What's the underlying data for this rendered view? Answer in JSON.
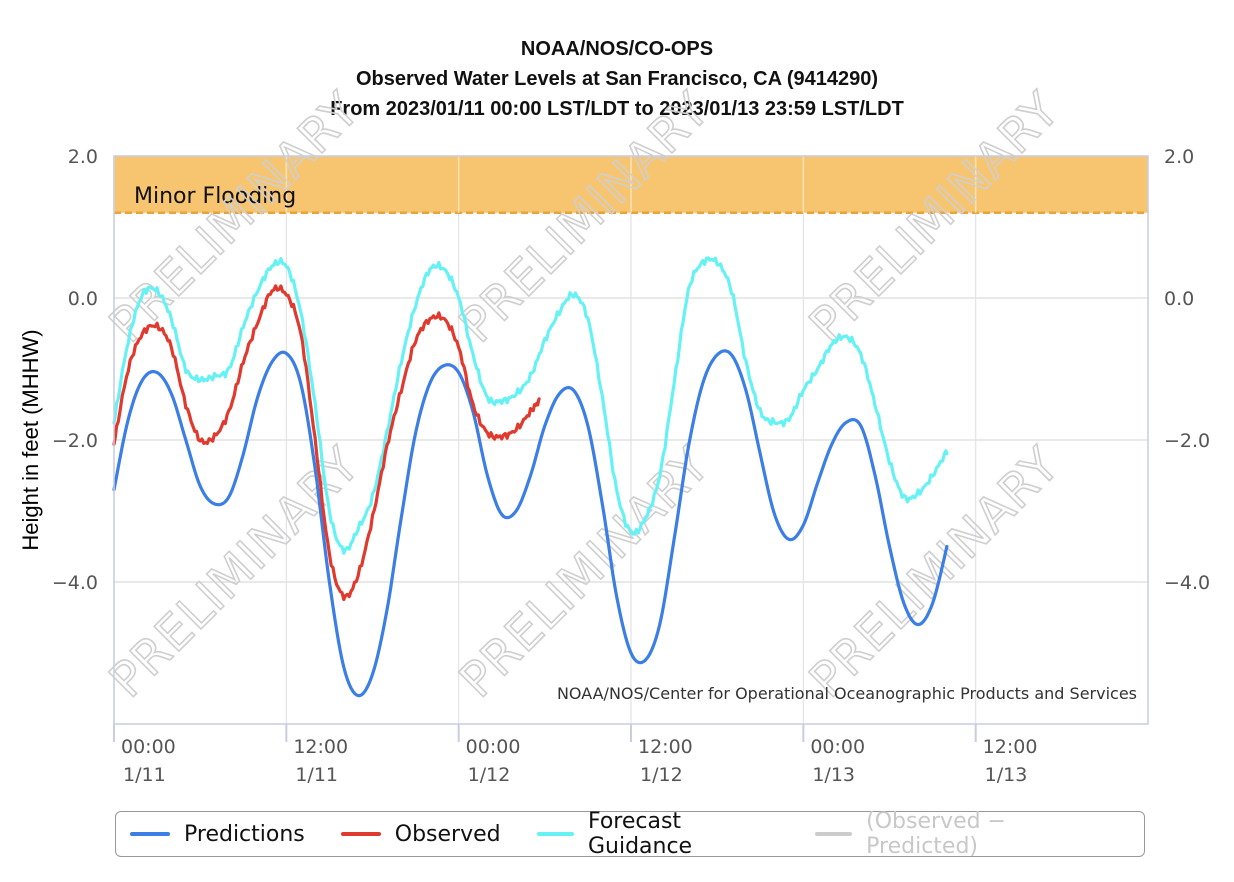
{
  "titles": {
    "line1": "NOAA/NOS/CO-OPS",
    "line2": "Observed Water Levels at San Francisco, CA (9414290)",
    "line3": "From 2023/01/11 00:00 LST/LDT to 2023/01/13 23:59 LST/LDT"
  },
  "credit": "NOAA/NOS/Center for Operational Oceanographic Products and Services",
  "watermark_text": "PRELIMINARY",
  "chart_data": {
    "type": "line",
    "ylabel": "Height in feet (MHHW)",
    "ylim": [
      -6.0,
      2.0
    ],
    "xlim": [
      0,
      72
    ],
    "x_units": "hours from 2023/01/11 00:00",
    "y_ticks": [
      {
        "value": 2.0,
        "label": "2.0"
      },
      {
        "value": 0.0,
        "label": "0.0"
      },
      {
        "value": -2.0,
        "label": "−2.0"
      },
      {
        "value": -4.0,
        "label": "−4.0"
      }
    ],
    "x_ticks": [
      {
        "x": 0,
        "time": "00:00",
        "date": "1/11"
      },
      {
        "x": 12,
        "time": "12:00",
        "date": "1/11"
      },
      {
        "x": 24,
        "time": "00:00",
        "date": "1/12"
      },
      {
        "x": 36,
        "time": "12:00",
        "date": "1/12"
      },
      {
        "x": 48,
        "time": "00:00",
        "date": "1/13"
      },
      {
        "x": 60,
        "time": "12:00",
        "date": "1/13"
      }
    ],
    "grid": true,
    "band": {
      "label": "Minor Flooding",
      "from": 1.2,
      "to": 2.0,
      "color": "#f7c570",
      "line_color": "#e8a33a"
    },
    "series": [
      {
        "name": "Predictions",
        "color": "#3a7ee6",
        "points": [
          [
            0,
            -2.7
          ],
          [
            1,
            -1.7
          ],
          [
            2,
            -1.15
          ],
          [
            3,
            -1.05
          ],
          [
            4,
            -1.35
          ],
          [
            5,
            -2.0
          ],
          [
            6,
            -2.65
          ],
          [
            7,
            -2.9
          ],
          [
            8,
            -2.8
          ],
          [
            9,
            -2.2
          ],
          [
            10,
            -1.4
          ],
          [
            11,
            -0.9
          ],
          [
            12,
            -0.78
          ],
          [
            13,
            -1.2
          ],
          [
            14,
            -2.4
          ],
          [
            15,
            -4.0
          ],
          [
            16,
            -5.2
          ],
          [
            17,
            -5.6
          ],
          [
            18,
            -5.3
          ],
          [
            19,
            -4.4
          ],
          [
            20,
            -3.1
          ],
          [
            21,
            -1.9
          ],
          [
            22,
            -1.2
          ],
          [
            23,
            -0.95
          ],
          [
            24,
            -1.05
          ],
          [
            25,
            -1.6
          ],
          [
            26,
            -2.5
          ],
          [
            27,
            -3.05
          ],
          [
            28,
            -3.0
          ],
          [
            29,
            -2.5
          ],
          [
            30,
            -1.8
          ],
          [
            31,
            -1.35
          ],
          [
            32,
            -1.3
          ],
          [
            33,
            -1.8
          ],
          [
            34,
            -2.9
          ],
          [
            35,
            -4.2
          ],
          [
            36,
            -5.0
          ],
          [
            37,
            -5.1
          ],
          [
            38,
            -4.6
          ],
          [
            39,
            -3.4
          ],
          [
            40,
            -2.1
          ],
          [
            41,
            -1.2
          ],
          [
            42,
            -0.8
          ],
          [
            43,
            -0.8
          ],
          [
            44,
            -1.3
          ],
          [
            45,
            -2.2
          ],
          [
            46,
            -3.05
          ],
          [
            47,
            -3.4
          ],
          [
            48,
            -3.2
          ],
          [
            49,
            -2.6
          ],
          [
            50,
            -2.05
          ],
          [
            51,
            -1.75
          ],
          [
            52,
            -1.8
          ],
          [
            53,
            -2.5
          ],
          [
            54,
            -3.5
          ],
          [
            55,
            -4.3
          ],
          [
            56,
            -4.6
          ],
          [
            57,
            -4.3
          ],
          [
            58,
            -3.5
          ]
        ]
      },
      {
        "name": "Observed",
        "color": "#e03a2e",
        "points": [
          [
            0,
            -2.05
          ],
          [
            1,
            -1.0
          ],
          [
            2,
            -0.5
          ],
          [
            3,
            -0.4
          ],
          [
            4,
            -0.7
          ],
          [
            5,
            -1.5
          ],
          [
            6,
            -2.0
          ],
          [
            7,
            -1.95
          ],
          [
            8,
            -1.6
          ],
          [
            9,
            -0.9
          ],
          [
            10,
            -0.35
          ],
          [
            11,
            0.1
          ],
          [
            12,
            0.05
          ],
          [
            13,
            -0.5
          ],
          [
            14,
            -2.0
          ],
          [
            15,
            -3.6
          ],
          [
            16,
            -4.2
          ],
          [
            17,
            -3.9
          ],
          [
            18,
            -3.1
          ],
          [
            19,
            -2.1
          ],
          [
            20,
            -1.3
          ],
          [
            21,
            -0.6
          ],
          [
            22,
            -0.3
          ],
          [
            23,
            -0.3
          ],
          [
            24,
            -0.7
          ],
          [
            25,
            -1.5
          ],
          [
            26,
            -1.9
          ],
          [
            27,
            -1.95
          ],
          [
            28,
            -1.85
          ],
          [
            29,
            -1.6
          ],
          [
            29.6,
            -1.45
          ]
        ]
      },
      {
        "name": "Forecast Guidance",
        "color": "#66f2f5",
        "points": [
          [
            0,
            -1.75
          ],
          [
            1,
            -0.6
          ],
          [
            2,
            0.05
          ],
          [
            3,
            0.1
          ],
          [
            4,
            -0.3
          ],
          [
            5,
            -1.0
          ],
          [
            6,
            -1.15
          ],
          [
            7,
            -1.1
          ],
          [
            8,
            -1.0
          ],
          [
            9,
            -0.4
          ],
          [
            10,
            0.1
          ],
          [
            11,
            0.45
          ],
          [
            12,
            0.45
          ],
          [
            13,
            -0.2
          ],
          [
            14,
            -1.5
          ],
          [
            15,
            -3.0
          ],
          [
            16,
            -3.55
          ],
          [
            17,
            -3.25
          ],
          [
            18,
            -2.8
          ],
          [
            19,
            -1.9
          ],
          [
            20,
            -0.9
          ],
          [
            21,
            -0.1
          ],
          [
            22,
            0.4
          ],
          [
            23,
            0.4
          ],
          [
            24,
            0.0
          ],
          [
            25,
            -0.8
          ],
          [
            26,
            -1.4
          ],
          [
            27,
            -1.45
          ],
          [
            28,
            -1.35
          ],
          [
            29,
            -1.1
          ],
          [
            30,
            -0.6
          ],
          [
            31,
            -0.2
          ],
          [
            32,
            0.05
          ],
          [
            33,
            -0.3
          ],
          [
            34,
            -1.4
          ],
          [
            35,
            -2.7
          ],
          [
            36,
            -3.3
          ],
          [
            37,
            -3.1
          ],
          [
            38,
            -2.5
          ],
          [
            39,
            -1.2
          ],
          [
            40,
            0.1
          ],
          [
            41,
            0.5
          ],
          [
            42,
            0.5
          ],
          [
            43,
            0.1
          ],
          [
            44,
            -0.9
          ],
          [
            45,
            -1.6
          ],
          [
            46,
            -1.75
          ],
          [
            47,
            -1.7
          ],
          [
            48,
            -1.3
          ],
          [
            49,
            -1.0
          ],
          [
            50,
            -0.65
          ],
          [
            51,
            -0.55
          ],
          [
            52,
            -0.8
          ],
          [
            53,
            -1.5
          ],
          [
            54,
            -2.3
          ],
          [
            55,
            -2.8
          ],
          [
            56,
            -2.75
          ],
          [
            57,
            -2.5
          ],
          [
            58,
            -2.15
          ]
        ]
      }
    ]
  },
  "legend": {
    "items": [
      {
        "label": "Predictions",
        "color": "#3a7ee6",
        "active": true
      },
      {
        "label": "Observed",
        "color": "#e03a2e",
        "active": true
      },
      {
        "label": "Forecast Guidance",
        "color": "#66f2f5",
        "active": true
      },
      {
        "label": "(Observed − Predicted)",
        "color": "#cccccc",
        "active": false
      }
    ]
  }
}
